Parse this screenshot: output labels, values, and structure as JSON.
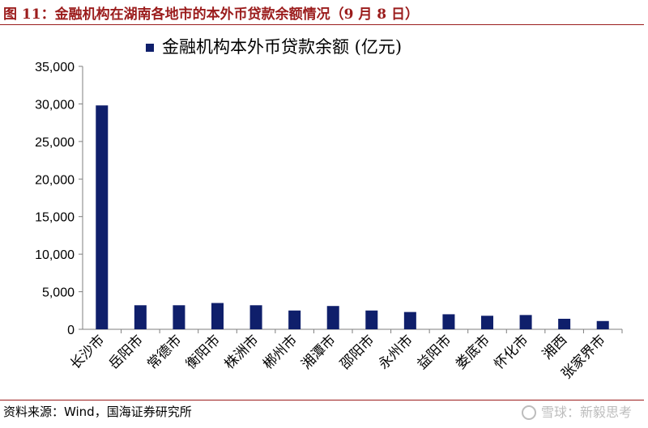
{
  "figure": {
    "title": "图 11：金融机构在湖南各地市的本外币贷款余额情况（9 月 8 日）",
    "source": "资料来源：Wind，国海证券研究所",
    "watermark": "雪球：新毅思考",
    "accent_color": "#9b1c1c"
  },
  "chart_data": {
    "type": "bar",
    "title": "金融机构本外币贷款余额 (亿元)",
    "legend_position": "top",
    "categories": [
      "长沙市",
      "岳阳市",
      "常德市",
      "衡阳市",
      "株洲市",
      "郴州市",
      "湘潭市",
      "邵阳市",
      "永州市",
      "益阳市",
      "娄底市",
      "怀化市",
      "湘西",
      "张家界市"
    ],
    "series": [
      {
        "name": "金融机构本外币贷款余额 (亿元)",
        "color": "#0f1f6b",
        "values": [
          29800,
          3200,
          3200,
          3500,
          3200,
          2500,
          3100,
          2500,
          2300,
          2000,
          1800,
          1900,
          1400,
          1100
        ]
      }
    ],
    "yticks": [
      "0",
      "5,000",
      "10,000",
      "15,000",
      "20,000",
      "25,000",
      "30,000",
      "35,000"
    ],
    "ylim": [
      0,
      35000
    ],
    "grid": false
  }
}
